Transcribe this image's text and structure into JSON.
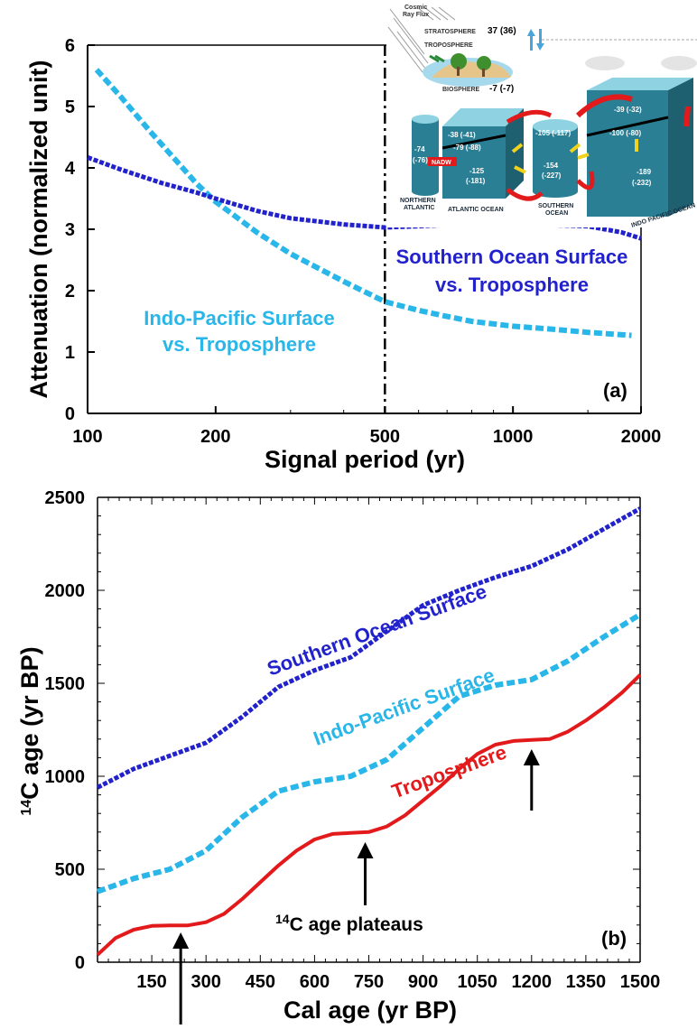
{
  "colors": {
    "southern_ocean": "#2222cc",
    "indo_pacific": "#29b6e8",
    "troposphere": "#e31a1c",
    "axis": "#000000",
    "ocean_box": "#2a7f94",
    "ocean_box_top": "#8fd3e3"
  },
  "inset": {
    "top_labels": {
      "cosmic": "Cosmic",
      "ray_flux": "Ray Flux",
      "stratosphere": "STRATOSPHERE",
      "strat_value": "37 (36)",
      "troposphere": "TROPOSPHERE",
      "biosphere": "BIOSPHERE",
      "bio_value": "-7 (-7)"
    },
    "boxes": {
      "na_value1": "-74",
      "na_value2": "(-76)",
      "nadw": "NADW",
      "atl_surf": "-38 (-41)",
      "atl_mid": "-79 (-88)",
      "atl_deep1": "-125",
      "atl_deep2": "(-181)",
      "so_surf": "-105 (-117)",
      "so_deep1": "-154",
      "so_deep2": "(-227)",
      "ip_surf": "-39 (-32)",
      "ip_mid": "-100 (-80)",
      "ip_deep1": "-189",
      "ip_deep2": "(-232)"
    },
    "region_labels": {
      "northern": "NORTHERN",
      "atlantic": "ATLANTIC",
      "atlantic_ocean": "ATLANTIC OCEAN",
      "southern": "SOUTHERN",
      "ocean": "OCEAN",
      "indo_pacific": "INDO PACIFIC OCEAN"
    }
  },
  "chart_data": [
    {
      "type": "line",
      "panel": "(a)",
      "xlabel": "Signal period (yr)",
      "ylabel": "Attenuation (normalized unit)",
      "xscale": "log",
      "xlim": [
        100,
        2000
      ],
      "ylim": [
        0,
        6
      ],
      "x_ticks": [
        100,
        200,
        500,
        1000,
        2000
      ],
      "x_tick_labels": [
        "100",
        "200",
        "500",
        "1000",
        "2000"
      ],
      "y_ticks": [
        0,
        1,
        2,
        3,
        4,
        5,
        6
      ],
      "y_tick_labels": [
        "0",
        "1",
        "2",
        "3",
        "4",
        "5",
        "6"
      ],
      "vertical_line_x": 500,
      "series": [
        {
          "name": "Indo-Pacific Surface vs. Troposphere",
          "label_line1": "Indo-Pacific Surface",
          "label_line2": "vs. Troposphere",
          "color": "#29b6e8",
          "style": "dashed",
          "x": [
            105,
            120,
            140,
            160,
            180,
            200,
            250,
            300,
            400,
            500,
            600,
            700,
            800,
            1000,
            1200,
            1500,
            1900
          ],
          "y": [
            5.6,
            5.15,
            4.6,
            4.15,
            3.75,
            3.45,
            2.95,
            2.6,
            2.15,
            1.82,
            1.68,
            1.58,
            1.5,
            1.42,
            1.38,
            1.32,
            1.27
          ]
        },
        {
          "name": "Southern Ocean Surface vs. Troposphere",
          "label_line1": "Southern Ocean Surface",
          "label_line2": "vs. Troposphere",
          "color": "#2222cc",
          "style": "dotted",
          "x": [
            100,
            120,
            150,
            180,
            200,
            250,
            300,
            400,
            500,
            600,
            700,
            800,
            1000,
            1200,
            1500,
            1800,
            2000
          ],
          "y": [
            4.17,
            3.97,
            3.75,
            3.6,
            3.5,
            3.3,
            3.18,
            3.08,
            3.03,
            3.05,
            3.07,
            3.08,
            3.08,
            3.07,
            3.05,
            2.95,
            2.85
          ]
        }
      ]
    },
    {
      "type": "line",
      "panel": "(b)",
      "xlabel": "Cal age (yr BP)",
      "ylabel_prefix": "14",
      "ylabel_rest": "C age (yr BP)",
      "xlim": [
        0,
        1500
      ],
      "ylim": [
        0,
        2500
      ],
      "x_ticks": [
        150,
        300,
        450,
        600,
        750,
        900,
        1050,
        1200,
        1350,
        1500
      ],
      "x_tick_labels": [
        "150",
        "300",
        "450",
        "600",
        "750",
        "900",
        "1050",
        "1200",
        "1350",
        "1500"
      ],
      "y_ticks": [
        0,
        500,
        1000,
        1500,
        2000,
        2500
      ],
      "y_tick_labels": [
        "0",
        "500",
        "1000",
        "1500",
        "2000",
        "2500"
      ],
      "plateau_label_prefix": "14",
      "plateau_label_rest": "C age plateaus",
      "plateau_arrows_x": [
        230,
        740,
        1200
      ],
      "series": [
        {
          "name": "Southern Ocean Surface",
          "color": "#2222cc",
          "style": "dotted",
          "x": [
            0,
            100,
            200,
            300,
            400,
            500,
            600,
            700,
            800,
            900,
            1000,
            1100,
            1200,
            1300,
            1400,
            1500
          ],
          "y": [
            940,
            1040,
            1110,
            1180,
            1320,
            1480,
            1570,
            1640,
            1780,
            1920,
            2000,
            2070,
            2130,
            2220,
            2330,
            2440
          ]
        },
        {
          "name": "Indo-Pacific Surface",
          "color": "#29b6e8",
          "style": "dashed",
          "x": [
            0,
            100,
            200,
            300,
            400,
            500,
            600,
            700,
            800,
            900,
            1000,
            1100,
            1200,
            1300,
            1400,
            1500
          ],
          "y": [
            380,
            450,
            500,
            600,
            780,
            920,
            970,
            1000,
            1090,
            1260,
            1430,
            1490,
            1520,
            1620,
            1750,
            1870
          ]
        },
        {
          "name": "Troposphere",
          "color": "#e31a1c",
          "style": "solid",
          "x": [
            0,
            50,
            100,
            150,
            200,
            250,
            300,
            350,
            400,
            450,
            500,
            550,
            600,
            650,
            700,
            750,
            800,
            850,
            900,
            950,
            1000,
            1050,
            1100,
            1150,
            1200,
            1250,
            1300,
            1350,
            1400,
            1450,
            1500
          ],
          "y": [
            40,
            130,
            175,
            195,
            198,
            198,
            215,
            260,
            340,
            430,
            520,
            600,
            660,
            690,
            695,
            700,
            730,
            790,
            870,
            950,
            1040,
            1120,
            1170,
            1190,
            1195,
            1200,
            1240,
            1300,
            1370,
            1450,
            1545
          ]
        }
      ]
    }
  ]
}
